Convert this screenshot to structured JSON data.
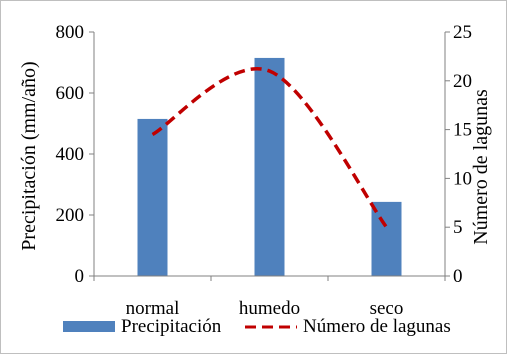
{
  "chart_data": {
    "type": "bar",
    "categories": [
      "normal",
      "humedo",
      "seco"
    ],
    "series": [
      {
        "name": "Precipitación",
        "type": "bar",
        "axis": "left",
        "color": "#4f81bd",
        "values": [
          515,
          715,
          243
        ]
      },
      {
        "name": "Número de lagunas",
        "type": "line",
        "axis": "right",
        "color": "#c00000",
        "line_style": "dashed",
        "smooth": true,
        "values": [
          14.5,
          21,
          5
        ]
      }
    ],
    "ylabel": "Precipitación (mm/año)",
    "ylim": [
      0,
      800
    ],
    "yticks": [
      "0",
      "200",
      "400",
      "600",
      "800"
    ],
    "y2label": "Número de lagunas",
    "y2lim": [
      0,
      25
    ],
    "y2ticks": [
      "0",
      "5",
      "10",
      "15",
      "20",
      "25"
    ],
    "grid": false,
    "legend": "bottom"
  }
}
